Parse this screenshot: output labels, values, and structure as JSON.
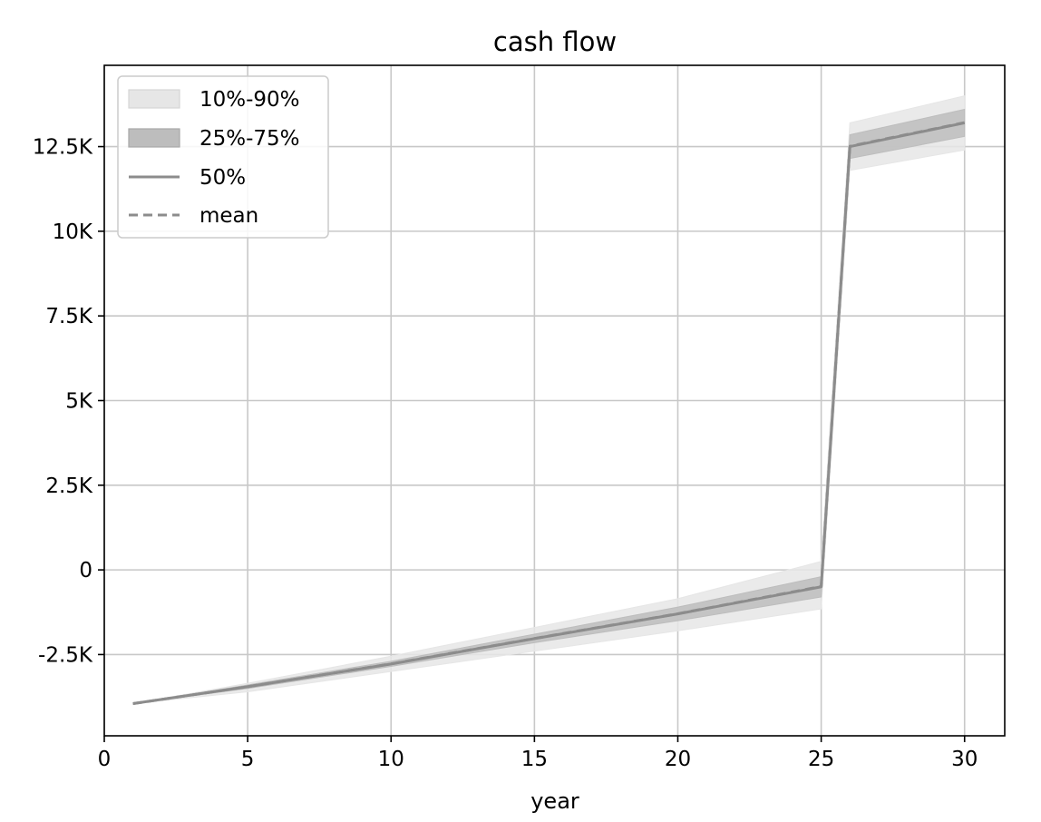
{
  "chart_data": {
    "type": "area",
    "title": "cash flow",
    "xlabel": "year",
    "ylabel": "",
    "xlim": [
      0,
      31.4
    ],
    "ylim": [
      -4900,
      14900
    ],
    "grid": true,
    "legend_placement": "top-left",
    "x_ticks": [
      0,
      5,
      10,
      15,
      20,
      25,
      30
    ],
    "x_tick_labels": [
      "0",
      "5",
      "10",
      "15",
      "20",
      "25",
      "30"
    ],
    "y_ticks": [
      -2500,
      0,
      2500,
      5000,
      7500,
      10000,
      12500
    ],
    "y_tick_labels": [
      "-2.5K",
      "0",
      "2.5K",
      "5K",
      "7.5K",
      "10K",
      "12.5K"
    ],
    "x": [
      1,
      5,
      10,
      15,
      20,
      25,
      26,
      30
    ],
    "series": [
      {
        "name": "10%-90%",
        "kind": "band",
        "color": "#e6e6e6",
        "lower": [
          -3950,
          -3600,
          -3000,
          -2400,
          -1800,
          -1150,
          11800,
          12400
        ],
        "upper": [
          -3950,
          -3350,
          -2550,
          -1700,
          -850,
          250,
          13200,
          14000
        ]
      },
      {
        "name": "25%-75%",
        "kind": "band",
        "color": "#bdbdbd",
        "lower": [
          -3950,
          -3500,
          -2850,
          -2150,
          -1500,
          -800,
          12150,
          12800
        ],
        "upper": [
          -3950,
          -3400,
          -2700,
          -1900,
          -1100,
          -200,
          12850,
          13600
        ]
      },
      {
        "name": "50%",
        "kind": "line",
        "color": "#8c8c8c",
        "dash": "solid",
        "values": [
          -3950,
          -3450,
          -2780,
          -2030,
          -1300,
          -500,
          12500,
          13200
        ]
      },
      {
        "name": "mean",
        "kind": "line",
        "color": "#8c8c8c",
        "dash": "dashed",
        "values": [
          -3950,
          -3450,
          -2775,
          -2025,
          -1295,
          -490,
          12510,
          13210
        ]
      }
    ]
  }
}
